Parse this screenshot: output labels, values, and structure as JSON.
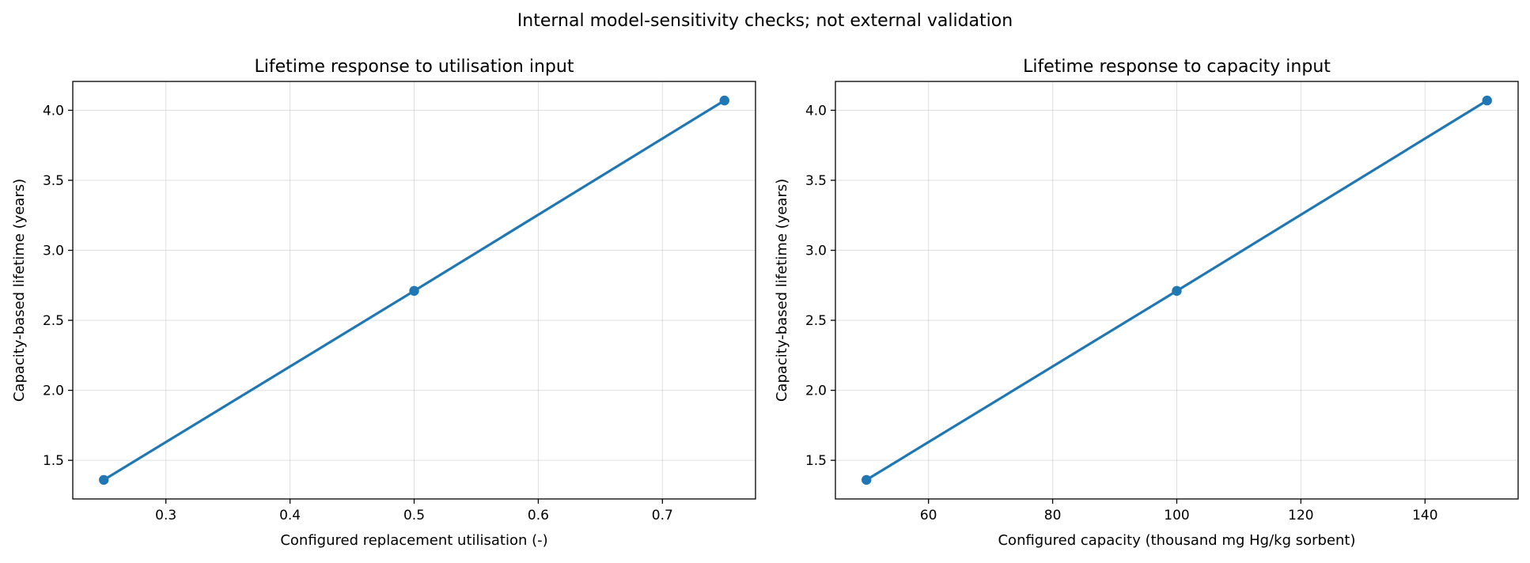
{
  "figure": {
    "suptitle": "Internal model-sensitivity checks; not external validation"
  },
  "chart_data": [
    {
      "type": "line",
      "title": "Lifetime response to utilisation input",
      "xlabel": "Configured replacement utilisation (-)",
      "ylabel": "Capacity-based lifetime (years)",
      "x": [
        0.25,
        0.5,
        0.75
      ],
      "series": [
        {
          "values": [
            1.36,
            2.71,
            4.07
          ],
          "color": "#1f77b4",
          "marker": "circle"
        }
      ],
      "xlim": [
        0.225,
        0.775
      ],
      "ylim": [
        1.224,
        4.206
      ],
      "xticks": [
        0.3,
        0.4,
        0.5,
        0.6,
        0.7
      ],
      "xtick_labels": [
        "0.3",
        "0.4",
        "0.5",
        "0.6",
        "0.7"
      ],
      "yticks": [
        1.5,
        2.0,
        2.5,
        3.0,
        3.5,
        4.0
      ],
      "ytick_labels": [
        "1.5",
        "2.0",
        "2.5",
        "3.0",
        "3.5",
        "4.0"
      ],
      "grid": true
    },
    {
      "type": "line",
      "title": "Lifetime response to capacity input",
      "xlabel": "Configured capacity (thousand mg Hg/kg sorbent)",
      "ylabel": "Capacity-based lifetime (years)",
      "x": [
        50,
        100,
        150
      ],
      "series": [
        {
          "values": [
            1.36,
            2.71,
            4.07
          ],
          "color": "#1f77b4",
          "marker": "circle"
        }
      ],
      "xlim": [
        45,
        155
      ],
      "ylim": [
        1.224,
        4.206
      ],
      "xticks": [
        60,
        80,
        100,
        120,
        140
      ],
      "xtick_labels": [
        "60",
        "80",
        "100",
        "120",
        "140"
      ],
      "yticks": [
        1.5,
        2.0,
        2.5,
        3.0,
        3.5,
        4.0
      ],
      "ytick_labels": [
        "1.5",
        "2.0",
        "2.5",
        "3.0",
        "3.5",
        "4.0"
      ],
      "grid": true
    }
  ]
}
